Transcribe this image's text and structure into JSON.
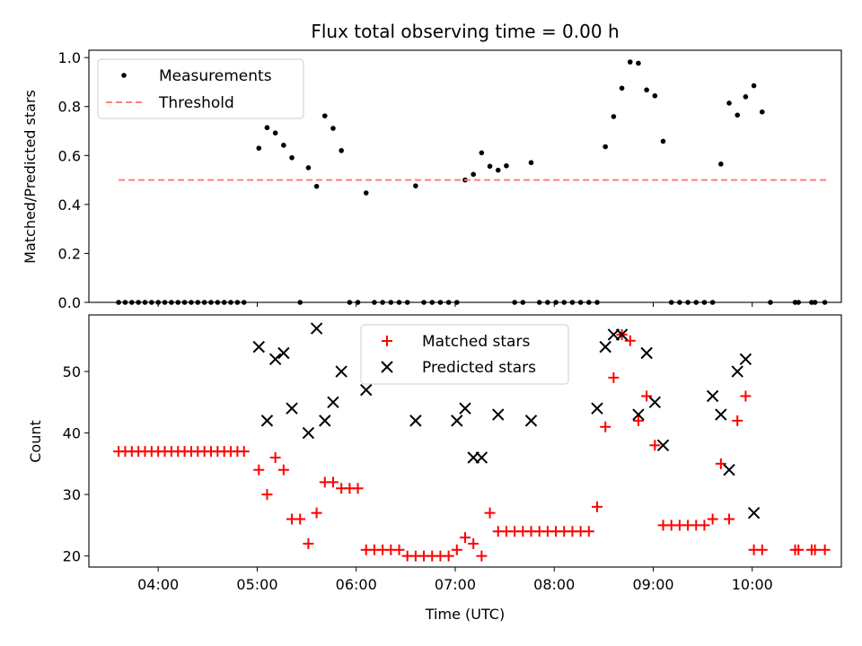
{
  "chart_data": [
    {
      "type": "scatter",
      "title": "Flux total observing time = 0.00 h",
      "xlabel": "",
      "ylabel": "Matched/Predicted stars",
      "xlim": [
        "03:18",
        "10:54"
      ],
      "ylim": [
        0,
        1.03
      ],
      "yticks": [
        "0.0",
        "0.2",
        "0.4",
        "0.6",
        "0.8",
        "1.0"
      ],
      "yticks_values": [
        0,
        0.2,
        0.4,
        0.6,
        0.8,
        1.0
      ],
      "xticks_values": [
        "04:00",
        "05:00",
        "06:00",
        "07:00",
        "08:00",
        "09:00",
        "10:00"
      ],
      "grid": false,
      "legend_position": "top-left",
      "series": [
        {
          "name": "Measurements",
          "marker": "dot",
          "color": "#000000",
          "points": [
            [
              "03:36",
              0
            ],
            [
              "03:40",
              0
            ],
            [
              "03:44",
              0
            ],
            [
              "03:48",
              0
            ],
            [
              "03:52",
              0
            ],
            [
              "03:56",
              0
            ],
            [
              "04:00",
              0
            ],
            [
              "04:04",
              0
            ],
            [
              "04:08",
              0
            ],
            [
              "04:12",
              0
            ],
            [
              "04:16",
              0
            ],
            [
              "04:20",
              0
            ],
            [
              "04:24",
              0
            ],
            [
              "04:28",
              0
            ],
            [
              "04:32",
              0
            ],
            [
              "04:36",
              0
            ],
            [
              "04:40",
              0
            ],
            [
              "04:44",
              0
            ],
            [
              "04:48",
              0
            ],
            [
              "04:52",
              0
            ],
            [
              "05:01",
              0.63
            ],
            [
              "05:06",
              0.714
            ],
            [
              "05:11",
              0.692
            ],
            [
              "05:16",
              0.642
            ],
            [
              "05:21",
              0.591
            ],
            [
              "05:26",
              0
            ],
            [
              "05:31",
              0.55
            ],
            [
              "05:36",
              0.474
            ],
            [
              "05:41",
              0.762
            ],
            [
              "05:46",
              0.711
            ],
            [
              "05:51",
              0.62
            ],
            [
              "05:56",
              0
            ],
            [
              "06:01",
              0
            ],
            [
              "06:06",
              0.447
            ],
            [
              "06:11",
              0
            ],
            [
              "06:16",
              0
            ],
            [
              "06:21",
              0
            ],
            [
              "06:26",
              0
            ],
            [
              "06:31",
              0
            ],
            [
              "06:36",
              0.476
            ],
            [
              "06:41",
              0
            ],
            [
              "06:46",
              0
            ],
            [
              "06:51",
              0
            ],
            [
              "06:56",
              0
            ],
            [
              "07:01",
              0
            ],
            [
              "07:06",
              0.5
            ],
            [
              "07:11",
              0.523
            ],
            [
              "07:16",
              0.611
            ],
            [
              "07:21",
              0.556
            ],
            [
              "07:26",
              0.54
            ],
            [
              "07:31",
              0.558
            ],
            [
              "07:36",
              0
            ],
            [
              "07:41",
              0
            ],
            [
              "07:46",
              0.571
            ],
            [
              "07:51",
              0
            ],
            [
              "07:56",
              0
            ],
            [
              "08:01",
              0
            ],
            [
              "08:06",
              0
            ],
            [
              "08:11",
              0
            ],
            [
              "08:16",
              0
            ],
            [
              "08:21",
              0
            ],
            [
              "08:26",
              0
            ],
            [
              "08:31",
              0.636
            ],
            [
              "08:36",
              0.759
            ],
            [
              "08:41",
              0.875
            ],
            [
              "08:46",
              0.982
            ],
            [
              "08:51",
              0.977
            ],
            [
              "08:56",
              0.868
            ],
            [
              "09:01",
              0.844
            ],
            [
              "09:06",
              0.658
            ],
            [
              "09:11",
              0
            ],
            [
              "09:16",
              0
            ],
            [
              "09:21",
              0
            ],
            [
              "09:26",
              0
            ],
            [
              "09:31",
              0
            ],
            [
              "09:36",
              0
            ],
            [
              "09:41",
              0.565
            ],
            [
              "09:46",
              0.814
            ],
            [
              "09:51",
              0.765
            ],
            [
              "09:56",
              0.84
            ],
            [
              "10:01",
              0.885
            ],
            [
              "10:06",
              0.778
            ],
            [
              "10:11",
              0
            ],
            [
              "10:26",
              0
            ],
            [
              "10:28",
              0
            ],
            [
              "10:36",
              0
            ],
            [
              "10:38",
              0
            ],
            [
              "10:44",
              0
            ]
          ]
        },
        {
          "name": "Threshold",
          "marker": "dashed-line",
          "color": "#ff7f7f",
          "points": [
            [
              "03:36",
              0.5
            ],
            [
              "10:46",
              0.5
            ]
          ]
        }
      ]
    },
    {
      "type": "scatter",
      "title": "",
      "xlabel": "Time (UTC)",
      "ylabel": "Count",
      "xlim": [
        "03:18",
        "10:54"
      ],
      "ylim": [
        18.2,
        59.2
      ],
      "yticks": [
        "20",
        "30",
        "40",
        "50"
      ],
      "yticks_values": [
        20,
        30,
        40,
        50
      ],
      "xticks": [
        "04:00",
        "05:00",
        "06:00",
        "07:00",
        "08:00",
        "09:00",
        "10:00"
      ],
      "xticks_values": [
        "04:00",
        "05:00",
        "06:00",
        "07:00",
        "08:00",
        "09:00",
        "10:00"
      ],
      "grid": false,
      "legend_position": "top-center",
      "series": [
        {
          "name": "Matched stars",
          "marker": "plus",
          "color": "#ff0000",
          "points": [
            [
              "03:36",
              37
            ],
            [
              "03:40",
              37
            ],
            [
              "03:44",
              37
            ],
            [
              "03:48",
              37
            ],
            [
              "03:52",
              37
            ],
            [
              "03:56",
              37
            ],
            [
              "04:00",
              37
            ],
            [
              "04:04",
              37
            ],
            [
              "04:08",
              37
            ],
            [
              "04:12",
              37
            ],
            [
              "04:16",
              37
            ],
            [
              "04:20",
              37
            ],
            [
              "04:24",
              37
            ],
            [
              "04:28",
              37
            ],
            [
              "04:32",
              37
            ],
            [
              "04:36",
              37
            ],
            [
              "04:40",
              37
            ],
            [
              "04:44",
              37
            ],
            [
              "04:48",
              37
            ],
            [
              "04:52",
              37
            ],
            [
              "05:01",
              34
            ],
            [
              "05:06",
              30
            ],
            [
              "05:11",
              36
            ],
            [
              "05:16",
              34
            ],
            [
              "05:21",
              26
            ],
            [
              "05:26",
              26
            ],
            [
              "05:31",
              22
            ],
            [
              "05:36",
              27
            ],
            [
              "05:41",
              32
            ],
            [
              "05:46",
              32
            ],
            [
              "05:51",
              31
            ],
            [
              "05:56",
              31
            ],
            [
              "06:01",
              31
            ],
            [
              "06:06",
              21
            ],
            [
              "06:11",
              21
            ],
            [
              "06:16",
              21
            ],
            [
              "06:21",
              21
            ],
            [
              "06:26",
              21
            ],
            [
              "06:31",
              20
            ],
            [
              "06:36",
              20
            ],
            [
              "06:41",
              20
            ],
            [
              "06:46",
              20
            ],
            [
              "06:51",
              20
            ],
            [
              "06:56",
              20
            ],
            [
              "07:01",
              21
            ],
            [
              "07:06",
              23
            ],
            [
              "07:11",
              22
            ],
            [
              "07:16",
              20
            ],
            [
              "07:21",
              27
            ],
            [
              "07:26",
              24
            ],
            [
              "07:31",
              24
            ],
            [
              "07:36",
              24
            ],
            [
              "07:41",
              24
            ],
            [
              "07:46",
              24
            ],
            [
              "07:51",
              24
            ],
            [
              "07:56",
              24
            ],
            [
              "08:01",
              24
            ],
            [
              "08:06",
              24
            ],
            [
              "08:11",
              24
            ],
            [
              "08:16",
              24
            ],
            [
              "08:21",
              24
            ],
            [
              "08:26",
              28
            ],
            [
              "08:31",
              41
            ],
            [
              "08:36",
              49
            ],
            [
              "08:41",
              56
            ],
            [
              "08:46",
              55
            ],
            [
              "08:51",
              42
            ],
            [
              "08:56",
              46
            ],
            [
              "09:01",
              38
            ],
            [
              "09:06",
              25
            ],
            [
              "09:11",
              25
            ],
            [
              "09:16",
              25
            ],
            [
              "09:21",
              25
            ],
            [
              "09:26",
              25
            ],
            [
              "09:31",
              25
            ],
            [
              "09:36",
              26
            ],
            [
              "09:41",
              35
            ],
            [
              "09:46",
              26
            ],
            [
              "09:51",
              42
            ],
            [
              "09:56",
              46
            ],
            [
              "10:01",
              21
            ],
            [
              "10:06",
              21
            ],
            [
              "10:26",
              21
            ],
            [
              "10:28",
              21
            ],
            [
              "10:36",
              21
            ],
            [
              "10:38",
              21
            ],
            [
              "10:44",
              21
            ]
          ]
        },
        {
          "name": "Predicted stars",
          "marker": "x",
          "color": "#000000",
          "points": [
            [
              "05:01",
              54
            ],
            [
              "05:06",
              42
            ],
            [
              "05:11",
              52
            ],
            [
              "05:16",
              53
            ],
            [
              "05:21",
              44
            ],
            [
              "05:31",
              40
            ],
            [
              "05:36",
              57
            ],
            [
              "05:41",
              42
            ],
            [
              "05:46",
              45
            ],
            [
              "05:51",
              50
            ],
            [
              "06:06",
              47
            ],
            [
              "06:36",
              42
            ],
            [
              "07:01",
              42
            ],
            [
              "07:06",
              44
            ],
            [
              "07:11",
              36
            ],
            [
              "07:16",
              36
            ],
            [
              "07:26",
              43
            ],
            [
              "07:46",
              42
            ],
            [
              "08:26",
              44
            ],
            [
              "08:31",
              54
            ],
            [
              "08:36",
              56
            ],
            [
              "08:41",
              56
            ],
            [
              "08:51",
              43
            ],
            [
              "08:56",
              53
            ],
            [
              "09:01",
              45
            ],
            [
              "09:06",
              38
            ],
            [
              "09:36",
              46
            ],
            [
              "09:41",
              43
            ],
            [
              "09:46",
              34
            ],
            [
              "09:51",
              50
            ],
            [
              "09:56",
              52
            ],
            [
              "10:01",
              27
            ]
          ]
        }
      ]
    }
  ]
}
